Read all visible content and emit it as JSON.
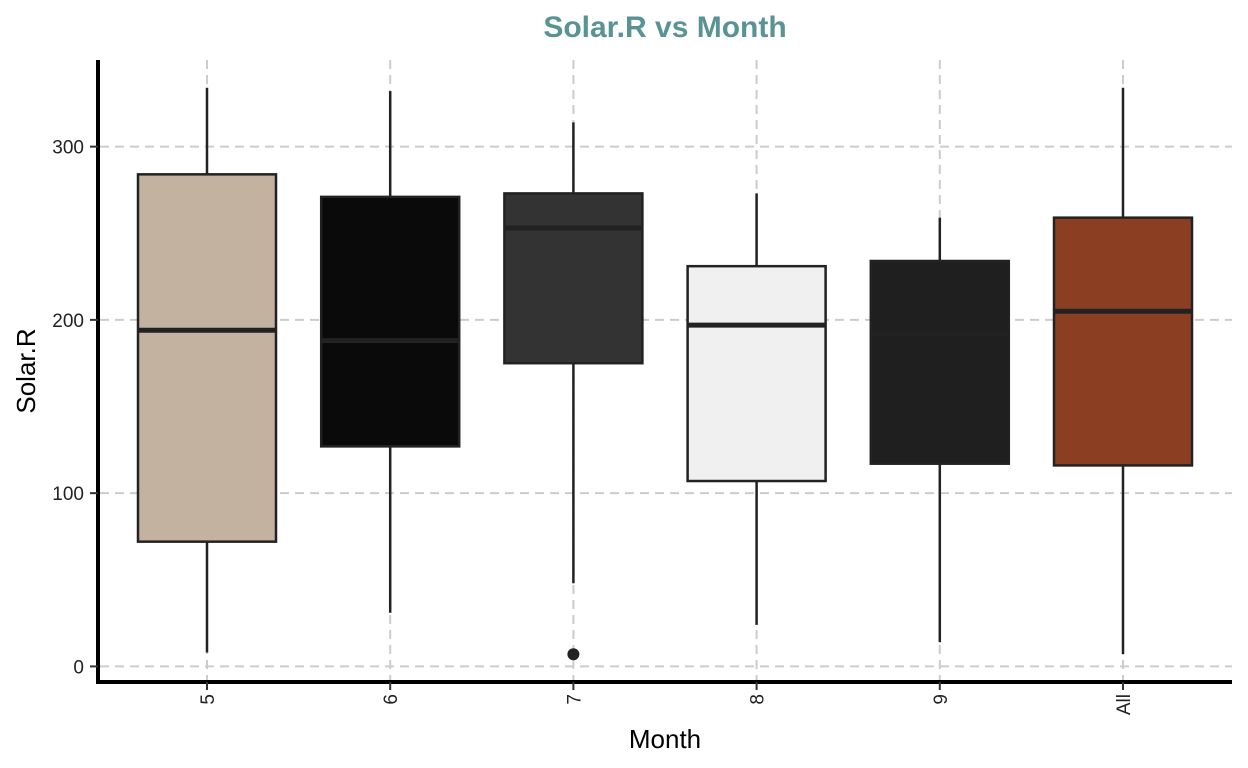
{
  "chart_data": {
    "type": "boxplot",
    "title": "Solar.R vs Month",
    "xlabel": "Month",
    "ylabel": "Solar.R",
    "ylim": [
      -9,
      350
    ],
    "yticks": [
      0,
      100,
      200,
      300
    ],
    "grid": true,
    "categories": [
      "5",
      "6",
      "7",
      "8",
      "9",
      "All"
    ],
    "boxes": [
      {
        "name": "5",
        "min": 8,
        "q1": 72,
        "median": 194,
        "q3": 284,
        "max": 334,
        "outliers": [],
        "color": "#C2B29F"
      },
      {
        "name": "6",
        "min": 31,
        "q1": 127,
        "median": 188,
        "q3": 271,
        "max": 332,
        "outliers": [],
        "color": "#0A0A0A"
      },
      {
        "name": "7",
        "min": 48,
        "q1": 175,
        "median": 253,
        "q3": 273,
        "max": 314,
        "outliers": [
          7
        ],
        "color": "#333333"
      },
      {
        "name": "8",
        "min": 24,
        "q1": 107,
        "median": 197,
        "q3": 231,
        "max": 273,
        "outliers": [],
        "color": "#F0F0F0"
      },
      {
        "name": "9",
        "min": 14,
        "q1": 117,
        "median": 192,
        "q3": 234,
        "max": 259,
        "outliers": [],
        "color": "#1F1F1F"
      },
      {
        "name": "All",
        "min": 7,
        "q1": 116,
        "median": 205,
        "q3": 259,
        "max": 334,
        "outliers": [],
        "color": "#8B3E22"
      }
    ],
    "title_color": "#5A9393",
    "box_outline_color": "#222222",
    "grid_color": "#CCCCCC"
  }
}
